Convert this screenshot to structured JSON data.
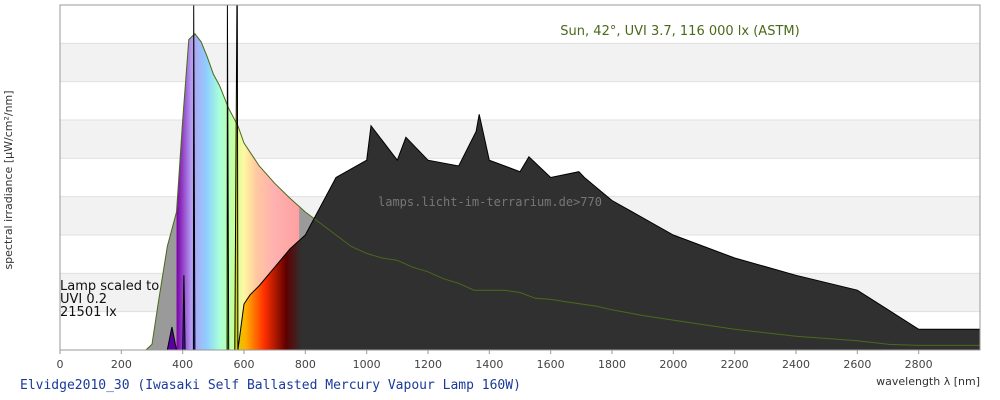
{
  "chart_data": {
    "type": "area",
    "title": "Elvidge2010_30 (Iwasaki Self Ballasted Mercury Vapour Lamp 160W)",
    "xlabel": "wavelength λ [nm]",
    "ylabel": "spectral irradiance [µW/cm²/nm]",
    "xlim": [
      0,
      3000
    ],
    "ylim": [
      0,
      300
    ],
    "grid": "horizontal-bands",
    "xticks": [
      0,
      200,
      400,
      600,
      800,
      1000,
      1200,
      1400,
      1600,
      1800,
      2000,
      2200,
      2400,
      2600,
      2800
    ],
    "watermark": "lamps.licht-im-terrarium.de>770",
    "series": [
      {
        "name": "Sun, 42°, UVI 3.7, 116 000 lx (ASTM)",
        "role": "reference-grey-area",
        "x": [
          280,
          300,
          320,
          350,
          380,
          400,
          420,
          440,
          460,
          480,
          500,
          520,
          550,
          580,
          600,
          650,
          700,
          750,
          800,
          850,
          900,
          950,
          1000,
          1050,
          1100,
          1150,
          1200,
          1250,
          1300,
          1350,
          1400,
          1450,
          1500,
          1550,
          1600,
          1650,
          1700,
          1750,
          1800,
          1900,
          2000,
          2100,
          2200,
          2300,
          2400,
          2500,
          2600,
          2700,
          2800,
          2900,
          3000
        ],
        "y": [
          0,
          5,
          40,
          90,
          120,
          200,
          270,
          275,
          268,
          255,
          240,
          230,
          210,
          195,
          180,
          160,
          145,
          132,
          120,
          110,
          100,
          90,
          84,
          80,
          78,
          72,
          68,
          62,
          58,
          52,
          52,
          52,
          50,
          45,
          44,
          42,
          40,
          38,
          35,
          30,
          26,
          22,
          18,
          15,
          12,
          10,
          8,
          5,
          4,
          4,
          4
        ]
      },
      {
        "name": "Lamp scaled to UVI 0.2",
        "role": "lamp-spectrum",
        "x": [
          0,
          350,
          365,
          380,
          400,
          404,
          408,
          420,
          435,
          436,
          440,
          460,
          480,
          500,
          520,
          545,
          546,
          550,
          570,
          577,
          578,
          580,
          600,
          620,
          650,
          700,
          750,
          800,
          900,
          1000,
          1014,
          1100,
          1128,
          1200,
          1300,
          1357,
          1367,
          1400,
          1500,
          1529,
          1600,
          1692,
          1710,
          1800,
          2000,
          2200,
          2400,
          2600,
          2800,
          2900,
          3000
        ],
        "y": [
          0,
          0,
          20,
          0,
          0,
          65,
          0,
          0,
          0,
          300,
          0,
          0,
          0,
          0,
          0,
          0,
          300,
          0,
          0,
          300,
          300,
          0,
          40,
          48,
          56,
          72,
          88,
          100,
          150,
          165,
          195,
          165,
          185,
          165,
          160,
          190,
          205,
          165,
          155,
          168,
          150,
          155,
          150,
          130,
          100,
          80,
          65,
          52,
          18,
          18,
          18
        ]
      }
    ],
    "annotations": [
      "Lamp scaled to",
      "UVI 0.2",
      "21501 lx"
    ]
  }
}
